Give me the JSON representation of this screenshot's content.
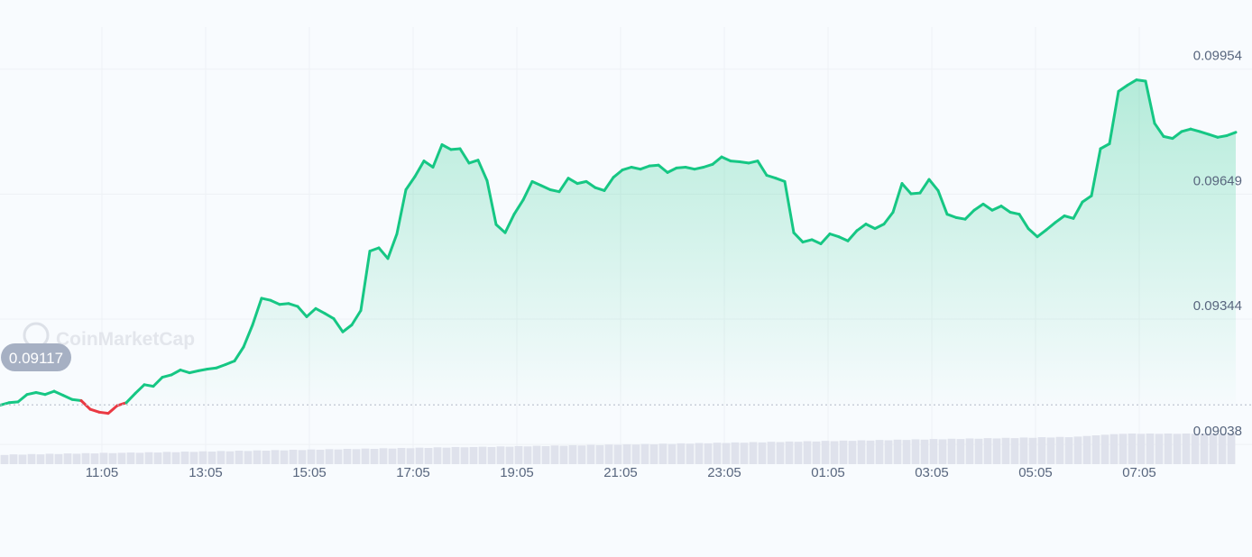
{
  "chart_data": {
    "type": "area",
    "title": "",
    "xlabel": "",
    "ylabel": "",
    "watermark": "CoinMarketCap",
    "reference_price": 0.09117,
    "reference_label": "0.09117",
    "ylim": [
      0.0897,
      0.1007
    ],
    "y_ticks": [
      {
        "value": 0.09954,
        "label": "0.09954"
      },
      {
        "value": 0.09649,
        "label": "0.09649"
      },
      {
        "value": 0.09344,
        "label": "0.09344"
      },
      {
        "value": 0.09038,
        "label": "0.09038"
      }
    ],
    "xlim": [
      0,
      1370
    ],
    "x_ticks": [
      {
        "t": 113,
        "label": "11:05"
      },
      {
        "t": 228,
        "label": "13:05"
      },
      {
        "t": 343,
        "label": "15:05"
      },
      {
        "t": 458,
        "label": "17:05"
      },
      {
        "t": 573,
        "label": "19:05"
      },
      {
        "t": 688,
        "label": "21:05"
      },
      {
        "t": 803,
        "label": "23:05"
      },
      {
        "t": 918,
        "label": "01:05"
      },
      {
        "t": 1033,
        "label": "03:05"
      },
      {
        "t": 1148,
        "label": "05:05"
      },
      {
        "t": 1263,
        "label": "07:05"
      }
    ],
    "grid": true,
    "colors": {
      "up": "#16c784",
      "down": "#ea3943",
      "grid": "#eef1f5",
      "axis_text": "#58667e",
      "volume": "#dfe2ec",
      "reference_badge": "#a6b0c3"
    },
    "series": [
      {
        "points": [
          [
            0,
            0.09114
          ],
          [
            10,
            0.0912
          ],
          [
            20,
            0.09122
          ],
          [
            30,
            0.0914
          ],
          [
            40,
            0.09145
          ],
          [
            50,
            0.0914
          ],
          [
            60,
            0.09148
          ],
          [
            70,
            0.09138
          ],
          [
            80,
            0.09128
          ],
          [
            90,
            0.09125
          ],
          [
            100,
            0.09104
          ],
          [
            110,
            0.09097
          ],
          [
            120,
            0.09094
          ],
          [
            130,
            0.09113
          ],
          [
            140,
            0.0912
          ],
          [
            150,
            0.09143
          ],
          [
            160,
            0.09164
          ],
          [
            170,
            0.0916
          ],
          [
            180,
            0.09182
          ],
          [
            190,
            0.09188
          ],
          [
            200,
            0.092
          ],
          [
            210,
            0.09193
          ],
          [
            220,
            0.09198
          ],
          [
            230,
            0.09202
          ],
          [
            240,
            0.09205
          ],
          [
            250,
            0.09213
          ],
          [
            260,
            0.09222
          ],
          [
            270,
            0.09256
          ],
          [
            280,
            0.0931
          ],
          [
            290,
            0.09375
          ],
          [
            300,
            0.0937
          ],
          [
            310,
            0.0936
          ],
          [
            320,
            0.09362
          ],
          [
            330,
            0.09355
          ],
          [
            340,
            0.0933
          ],
          [
            350,
            0.0935
          ],
          [
            360,
            0.09338
          ],
          [
            370,
            0.09325
          ],
          [
            380,
            0.09293
          ],
          [
            390,
            0.0931
          ],
          [
            400,
            0.09345
          ],
          [
            410,
            0.0949
          ],
          [
            420,
            0.09498
          ],
          [
            430,
            0.09472
          ],
          [
            440,
            0.09532
          ],
          [
            450,
            0.0964
          ],
          [
            460,
            0.09672
          ],
          [
            470,
            0.0971
          ],
          [
            480,
            0.09695
          ],
          [
            490,
            0.0975
          ],
          [
            500,
            0.09738
          ],
          [
            510,
            0.0974
          ],
          [
            520,
            0.09705
          ],
          [
            530,
            0.09712
          ],
          [
            540,
            0.09662
          ],
          [
            550,
            0.09555
          ],
          [
            560,
            0.09535
          ],
          [
            570,
            0.0958
          ],
          [
            580,
            0.09615
          ],
          [
            590,
            0.0966
          ],
          [
            600,
            0.0965
          ],
          [
            610,
            0.0964
          ],
          [
            620,
            0.09635
          ],
          [
            630,
            0.09668
          ],
          [
            640,
            0.09655
          ],
          [
            650,
            0.0966
          ],
          [
            660,
            0.09645
          ],
          [
            670,
            0.09638
          ],
          [
            680,
            0.0967
          ],
          [
            690,
            0.09688
          ],
          [
            700,
            0.09695
          ],
          [
            710,
            0.0969
          ],
          [
            720,
            0.09698
          ],
          [
            730,
            0.097
          ],
          [
            740,
            0.09682
          ],
          [
            750,
            0.09693
          ],
          [
            760,
            0.09695
          ],
          [
            770,
            0.0969
          ],
          [
            780,
            0.09695
          ],
          [
            790,
            0.09702
          ],
          [
            800,
            0.0972
          ],
          [
            810,
            0.0971
          ],
          [
            820,
            0.09708
          ],
          [
            830,
            0.09705
          ],
          [
            840,
            0.0971
          ],
          [
            850,
            0.09675
          ],
          [
            860,
            0.09668
          ],
          [
            870,
            0.0966
          ],
          [
            880,
            0.09535
          ],
          [
            890,
            0.09512
          ],
          [
            900,
            0.09518
          ],
          [
            910,
            0.09508
          ],
          [
            920,
            0.09532
          ],
          [
            930,
            0.09525
          ],
          [
            940,
            0.09515
          ],
          [
            950,
            0.0954
          ],
          [
            960,
            0.09556
          ],
          [
            970,
            0.09545
          ],
          [
            980,
            0.09556
          ],
          [
            990,
            0.09585
          ],
          [
            1000,
            0.09655
          ],
          [
            1010,
            0.0963
          ],
          [
            1020,
            0.09632
          ],
          [
            1030,
            0.09665
          ],
          [
            1040,
            0.09638
          ],
          [
            1050,
            0.0958
          ],
          [
            1060,
            0.09572
          ],
          [
            1070,
            0.09568
          ],
          [
            1080,
            0.0959
          ],
          [
            1090,
            0.09605
          ],
          [
            1100,
            0.0959
          ],
          [
            1110,
            0.096
          ],
          [
            1120,
            0.09585
          ],
          [
            1130,
            0.0958
          ],
          [
            1140,
            0.09545
          ],
          [
            1150,
            0.09525
          ],
          [
            1160,
            0.09542
          ],
          [
            1170,
            0.0956
          ],
          [
            1180,
            0.09576
          ],
          [
            1190,
            0.0957
          ],
          [
            1200,
            0.0961
          ],
          [
            1210,
            0.09625
          ],
          [
            1220,
            0.0974
          ],
          [
            1230,
            0.09752
          ],
          [
            1240,
            0.0988
          ],
          [
            1250,
            0.09895
          ],
          [
            1260,
            0.09908
          ],
          [
            1270,
            0.09905
          ],
          [
            1280,
            0.09802
          ],
          [
            1290,
            0.0977
          ],
          [
            1300,
            0.09765
          ],
          [
            1310,
            0.09782
          ],
          [
            1320,
            0.09788
          ],
          [
            1330,
            0.09782
          ],
          [
            1340,
            0.09775
          ],
          [
            1350,
            0.09768
          ],
          [
            1360,
            0.09772
          ],
          [
            1370,
            0.0978
          ]
        ]
      }
    ],
    "volume": [
      0.3,
      0.32,
      0.31,
      0.33,
      0.32,
      0.34,
      0.33,
      0.35,
      0.34,
      0.36,
      0.35,
      0.37,
      0.36,
      0.37,
      0.38,
      0.37,
      0.39,
      0.38,
      0.4,
      0.39,
      0.41,
      0.4,
      0.42,
      0.41,
      0.43,
      0.42,
      0.44,
      0.43,
      0.45,
      0.44,
      0.46,
      0.45,
      0.47,
      0.46,
      0.48,
      0.47,
      0.49,
      0.48,
      0.5,
      0.49,
      0.51,
      0.5,
      0.52,
      0.51,
      0.53,
      0.52,
      0.54,
      0.53,
      0.55,
      0.54,
      0.56,
      0.55,
      0.56,
      0.57,
      0.56,
      0.58,
      0.57,
      0.59,
      0.58,
      0.6,
      0.59,
      0.61,
      0.6,
      0.62,
      0.61,
      0.63,
      0.62,
      0.64,
      0.63,
      0.65,
      0.64,
      0.66,
      0.65,
      0.67,
      0.66,
      0.68,
      0.67,
      0.69,
      0.68,
      0.7,
      0.69,
      0.71,
      0.7,
      0.72,
      0.71,
      0.73,
      0.72,
      0.74,
      0.73,
      0.75,
      0.74,
      0.76,
      0.75,
      0.77,
      0.76,
      0.78,
      0.77,
      0.79,
      0.78,
      0.8,
      0.79,
      0.81,
      0.8,
      0.82,
      0.81,
      0.83,
      0.82,
      0.84,
      0.83,
      0.85,
      0.84,
      0.86,
      0.85,
      0.87,
      0.86,
      0.88,
      0.87,
      0.89,
      0.88,
      0.9,
      0.92,
      0.94,
      0.96,
      0.98,
      0.99,
      1.0,
      0.99,
      1.0,
      0.99,
      1.0,
      0.99,
      1.0,
      0.99,
      1.0,
      1.0,
      1.0,
      1.0
    ]
  }
}
